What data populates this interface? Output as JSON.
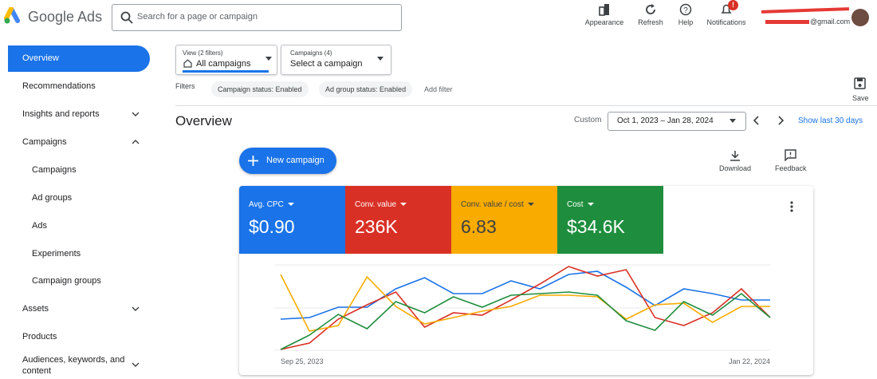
{
  "header": {
    "logo": "Google Ads",
    "search_placeholder": "Search for a page or campaign",
    "tools": [
      "Appearance",
      "Refresh",
      "Help",
      "Notifications"
    ],
    "notification_badge": "!",
    "account_email": "@gmail.com"
  },
  "sidebar": {
    "items": [
      "Overview",
      "Recommendations",
      "Insights and reports",
      "Campaigns",
      "Campaigns",
      "Ad groups",
      "Ads",
      "Experiments",
      "Campaign groups",
      "Assets",
      "Products",
      "Audiences, keywords, and content"
    ]
  },
  "toolbar": {
    "view_label": "View (2 filters)",
    "view_value": "All campaigns",
    "campaigns_label": "Campaigns (4)",
    "campaigns_value": "Select a campaign",
    "filters_label": "Filters",
    "filters": [
      "Campaign status: Enabled",
      "Ad group status: Enabled"
    ],
    "add_filter": "Add filter",
    "save": "Save"
  },
  "overview": {
    "title": "Overview",
    "range_type": "Custom",
    "date_range": "Oct 1, 2023 – Jan 28, 2024",
    "show_last": "Show last 30 days",
    "new_campaign": "New campaign",
    "download": "Download",
    "feedback": "Feedback"
  },
  "chart": {
    "type": "line",
    "categories": [
      "Sep 25, 2023",
      null,
      null,
      null,
      null,
      null,
      null,
      null,
      null,
      null,
      null,
      null,
      null,
      null,
      null,
      null,
      null,
      "Jan 22, 2024"
    ],
    "series": [
      {
        "name": "Avg. CPC",
        "total": "$0.90",
        "color": "#1a73e8",
        "values": [
          40,
          42,
          55,
          55,
          78,
          92,
          72,
          72,
          88,
          78,
          96,
          100,
          80,
          57,
          78,
          72,
          64,
          64
        ]
      },
      {
        "name": "Conv. value",
        "total": "236K",
        "color": "#d93025",
        "values": [
          2,
          10,
          40,
          58,
          74,
          30,
          48,
          45,
          64,
          84,
          106,
          94,
          102,
          42,
          32,
          48,
          78,
          42
        ]
      },
      {
        "name": "Conv. value / cost",
        "total": "6.83",
        "color": "#f9ab00",
        "values": [
          96,
          25,
          32,
          93,
          56,
          34,
          42,
          50,
          56,
          70,
          70,
          68,
          40,
          58,
          60,
          36,
          56,
          56
        ]
      },
      {
        "name": "Cost",
        "total": "$34.6K",
        "color": "#1e8e3e",
        "values": [
          2,
          20,
          46,
          28,
          62,
          48,
          68,
          55,
          70,
          72,
          74,
          70,
          38,
          26,
          62,
          45,
          72,
          42
        ]
      }
    ]
  }
}
